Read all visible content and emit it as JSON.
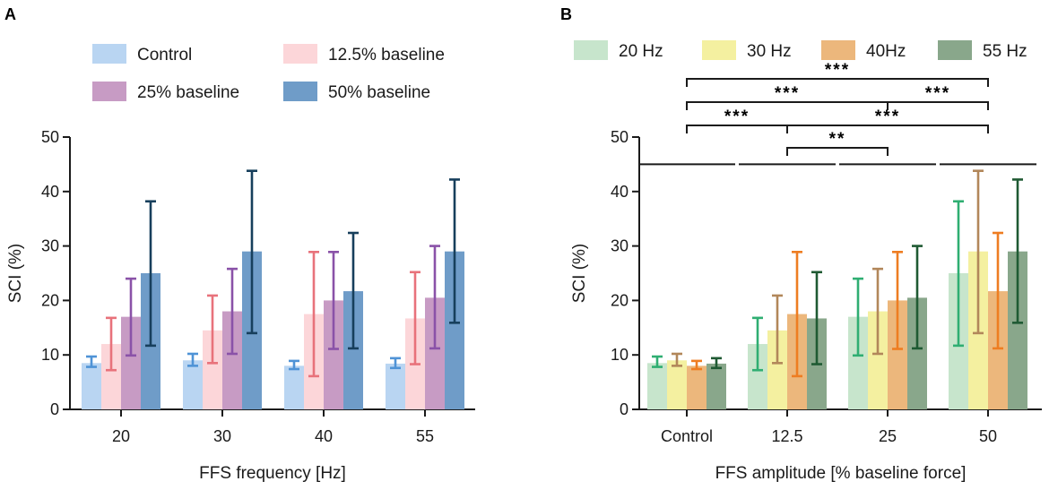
{
  "chart_data": [
    {
      "type": "bar",
      "panel": "A",
      "xlabel": "FFS frequency [Hz]",
      "ylabel": "SCI (%)",
      "ylim": [
        0,
        50
      ],
      "yticks": [
        0,
        10,
        20,
        30,
        40,
        50
      ],
      "categories": [
        "20",
        "30",
        "40",
        "55"
      ],
      "legend_position": "top",
      "series": [
        {
          "name": "Control",
          "color": "#b9d5f2",
          "err_color": "#4f93d6",
          "values": [
            8.5,
            9.0,
            8.0,
            8.4
          ],
          "upper": [
            9.7,
            10.2,
            8.9,
            9.4
          ],
          "lower": [
            7.8,
            8.0,
            7.4,
            7.6
          ]
        },
        {
          "name": "12.5% baseline",
          "color": "#fcd6d9",
          "err_color": "#e8727b",
          "values": [
            12.0,
            14.5,
            17.5,
            16.7
          ],
          "upper": [
            16.8,
            20.9,
            28.9,
            25.2
          ],
          "lower": [
            7.2,
            8.5,
            6.1,
            8.3
          ]
        },
        {
          "name": "25% baseline",
          "color": "#c79bc4",
          "err_color": "#8a52a8",
          "values": [
            17.0,
            18.0,
            20.0,
            20.5
          ],
          "upper": [
            24.0,
            25.8,
            28.9,
            30.0
          ],
          "lower": [
            9.9,
            10.2,
            11.1,
            11.2
          ]
        },
        {
          "name": "50% baseline",
          "color": "#6f9cc8",
          "err_color": "#173f5c",
          "values": [
            25.0,
            29.0,
            21.7,
            29.0
          ],
          "upper": [
            38.2,
            43.8,
            32.4,
            42.2
          ],
          "lower": [
            11.7,
            14.0,
            11.2,
            15.9
          ]
        }
      ]
    },
    {
      "type": "bar",
      "panel": "B",
      "xlabel": "FFS amplitude [% baseline force]",
      "ylabel": "SCI (%)",
      "ylim": [
        0,
        50
      ],
      "yticks": [
        0,
        10,
        20,
        30,
        40,
        50
      ],
      "categories": [
        "Control",
        "12.5",
        "25",
        "50"
      ],
      "legend_position": "top",
      "series": [
        {
          "name": "20 Hz",
          "color": "#c7e5cc",
          "err_color": "#2fae72",
          "values": [
            8.5,
            12.0,
            17.0,
            25.0
          ],
          "upper": [
            9.7,
            16.8,
            24.0,
            38.2
          ],
          "lower": [
            7.8,
            7.2,
            9.9,
            11.7
          ]
        },
        {
          "name": "30 Hz",
          "color": "#f4f0a0",
          "err_color": "#b2875a",
          "values": [
            9.0,
            14.5,
            18.0,
            29.0
          ],
          "upper": [
            10.2,
            20.9,
            25.8,
            43.8
          ],
          "lower": [
            8.0,
            8.5,
            10.2,
            14.0
          ]
        },
        {
          "name": "40Hz",
          "color": "#ecb77c",
          "err_color": "#ee7d22",
          "values": [
            8.0,
            17.5,
            20.0,
            21.7
          ],
          "upper": [
            8.9,
            28.9,
            28.9,
            32.4
          ],
          "lower": [
            7.4,
            6.1,
            11.1,
            11.2
          ]
        },
        {
          "name": "55 Hz",
          "color": "#89a78b",
          "err_color": "#1f5a33",
          "values": [
            8.4,
            16.7,
            20.5,
            29.0
          ],
          "upper": [
            9.4,
            25.2,
            30.0,
            42.2
          ],
          "lower": [
            7.6,
            8.3,
            11.2,
            15.9
          ]
        }
      ],
      "group_lines_value": 45,
      "significance": [
        {
          "from": 0,
          "to": 3,
          "label": "***"
        },
        {
          "from": 0,
          "to": 2,
          "label": "***"
        },
        {
          "from": 2,
          "to": 3,
          "label": "***"
        },
        {
          "from": 0,
          "to": 1,
          "label": "***"
        },
        {
          "from": 1,
          "to": 3,
          "label": "***"
        },
        {
          "from": 1,
          "to": 2,
          "label": "**"
        }
      ]
    }
  ]
}
